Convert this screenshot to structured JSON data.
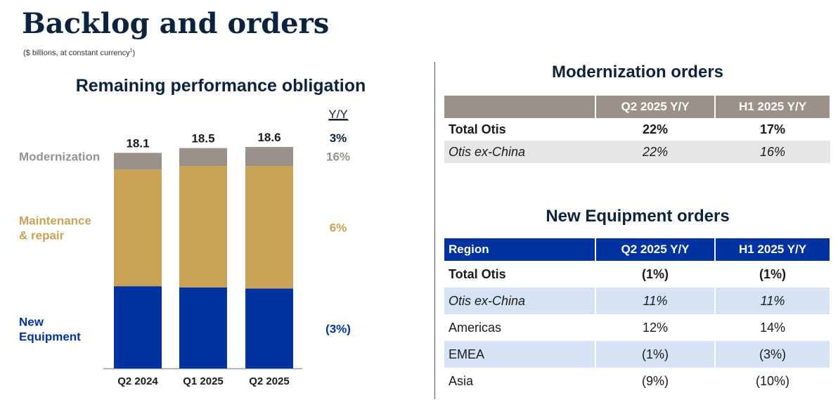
{
  "page": {
    "title": "Backlog and orders",
    "subtitle_prefix": "($ billions, at constant currency",
    "subtitle_sup": "1",
    "subtitle_suffix": ")"
  },
  "chart_data": {
    "type": "bar",
    "stacked": true,
    "title": "Remaining performance obligation",
    "categories": [
      "Q2 2024",
      "Q1 2025",
      "Q2 2025"
    ],
    "totals": [
      "18.1",
      "18.5",
      "18.6"
    ],
    "series": [
      {
        "name": "New Equipment",
        "values": [
          6.9,
          6.8,
          6.7
        ],
        "color": "#0033a0",
        "yy": "(3%)",
        "label_color": "#0033a0"
      },
      {
        "name": "Maintenance & repair",
        "values": [
          9.8,
          10.2,
          10.3
        ],
        "color": "#c9a255",
        "yy": "6%",
        "label_color": "#c9a255"
      },
      {
        "name": "Modernization",
        "values": [
          1.4,
          1.5,
          1.6
        ],
        "color": "#9a9289",
        "yy": "16%",
        "label_color": "#9a9289"
      }
    ],
    "yy_header": "Y/Y",
    "yy_total": "3%",
    "ylim": [
      0,
      18.6
    ]
  },
  "modernization": {
    "title": "Modernization orders",
    "headers": [
      "",
      "Q2 2025 Y/Y",
      "H1 2025 Y/Y"
    ],
    "rows": [
      {
        "label": "Total Otis",
        "q2": "22%",
        "h1": "17%"
      },
      {
        "label": "Otis ex-China",
        "q2": "22%",
        "h1": "16%"
      }
    ]
  },
  "new_equipment": {
    "title": "New Equipment orders",
    "headers": [
      "Region",
      "Q2 2025 Y/Y",
      "H1 2025 Y/Y"
    ],
    "rows": [
      {
        "label": "Total Otis",
        "q2": "(1%)",
        "h1": "(1%)"
      },
      {
        "label": "Otis ex-China",
        "q2": "11%",
        "h1": "11%"
      },
      {
        "label": "Americas",
        "q2": "12%",
        "h1": "14%"
      },
      {
        "label": "EMEA",
        "q2": "(1%)",
        "h1": "(3%)"
      },
      {
        "label": "Asia",
        "q2": "(9%)",
        "h1": "(10%)"
      }
    ]
  }
}
